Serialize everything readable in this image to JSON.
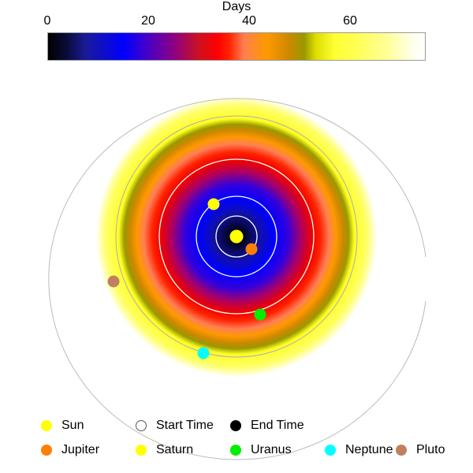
{
  "colorbar": {
    "title": "Days",
    "ticks": [
      {
        "value": 0,
        "label": "0"
      },
      {
        "value": 20,
        "label": "20"
      },
      {
        "value": 40,
        "label": "40"
      },
      {
        "value": 60,
        "label": "60"
      }
    ],
    "min": 0,
    "max": 75
  },
  "legend": {
    "items": [
      {
        "key": "sun",
        "label": "Sun",
        "color": "#ffff00",
        "style": "filled"
      },
      {
        "key": "start-time",
        "label": "Start Time",
        "color": "#ffffff",
        "stroke": "#555555",
        "style": "open"
      },
      {
        "key": "end-time",
        "label": "End Time",
        "color": "#000000",
        "style": "filled"
      },
      {
        "key": "jupiter",
        "label": "Jupiter",
        "color": "#ff7f00",
        "style": "filled"
      },
      {
        "key": "saturn",
        "label": "Saturn",
        "color": "#ffff00",
        "style": "filled"
      },
      {
        "key": "uranus",
        "label": "Uranus",
        "color": "#00ee00",
        "style": "filled"
      },
      {
        "key": "neptune",
        "label": "Neptune",
        "color": "#00ffff",
        "style": "filled"
      },
      {
        "key": "pluto",
        "label": "Pluto",
        "color": "#c08060",
        "style": "filled"
      }
    ]
  },
  "colors": {
    "orbit_white": "#ffffff",
    "orbit_grey": "#aaaaaa"
  }
}
